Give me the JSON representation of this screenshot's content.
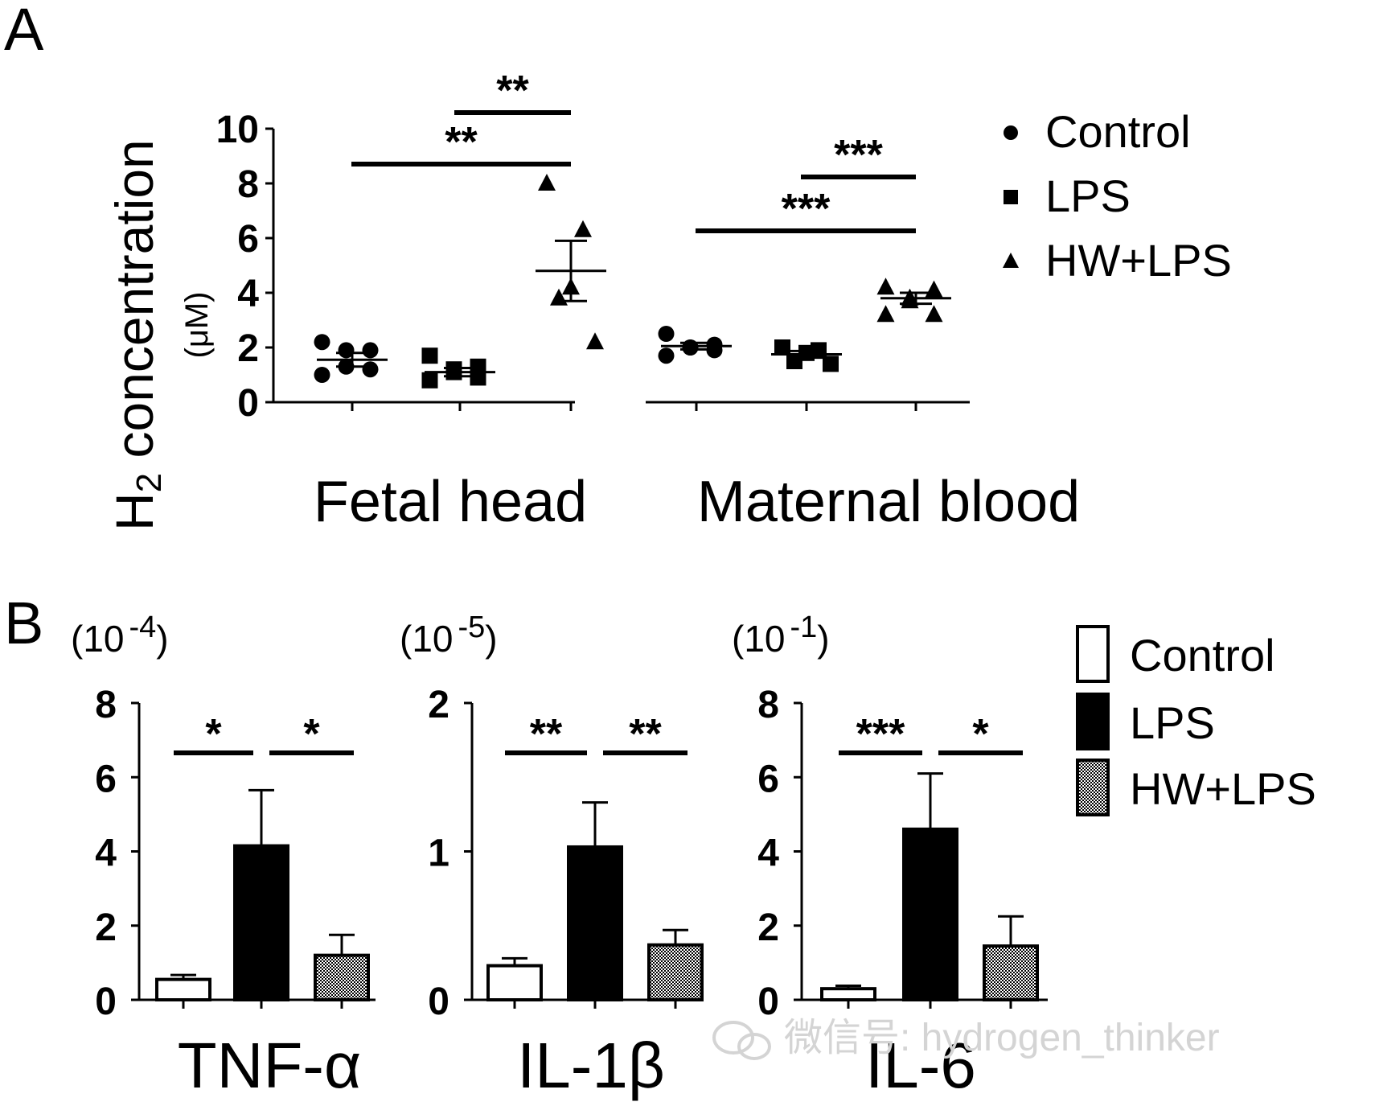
{
  "colors": {
    "control": "#ffffff",
    "lps": "#000000",
    "hwlps": "#9a9a9a",
    "watermark": "#d4d4d4"
  },
  "panel_a_label": "A",
  "panel_b_label": "B",
  "watermark": "微信号: hydrogen_thinker",
  "chart_data": [
    {
      "type": "scatter",
      "panel": "A",
      "ylabel": "H2 concentration",
      "ylabel_main": "H",
      "ylabel_sub": "2",
      "ylabel_rest": " concentration",
      "ylabel_unit": "(μM)",
      "ylim": [
        0,
        10
      ],
      "yticks": [
        0,
        2,
        4,
        6,
        8,
        10
      ],
      "groups": [
        "Fetal head",
        "Maternal blood"
      ],
      "legend": [
        {
          "name": "Control",
          "marker": "circle"
        },
        {
          "name": "LPS",
          "marker": "square"
        },
        {
          "name": "HW+LPS",
          "marker": "triangle"
        }
      ],
      "series": [
        {
          "group": "Fetal head",
          "name": "Control",
          "marker": "circle",
          "points": [
            2.2,
            1.9,
            1.9,
            1.3,
            1.2,
            1.0
          ],
          "mean": 1.55,
          "sem": 0.25
        },
        {
          "group": "Fetal head",
          "name": "LPS",
          "marker": "square",
          "points": [
            1.7,
            1.3,
            1.2,
            1.1,
            0.9,
            0.8
          ],
          "mean": 1.1,
          "sem": 0.15
        },
        {
          "group": "Fetal head",
          "name": "HW+LPS",
          "marker": "triangle",
          "points": [
            8.0,
            6.3,
            4.2,
            3.8,
            2.2
          ],
          "mean": 4.8,
          "sem": 1.1
        },
        {
          "group": "Maternal blood",
          "name": "Control",
          "marker": "circle",
          "points": [
            2.5,
            2.1,
            2.0,
            2.0,
            1.9,
            1.7
          ],
          "mean": 2.05,
          "sem": 0.12
        },
        {
          "group": "Maternal blood",
          "name": "LPS",
          "marker": "square",
          "points": [
            2.0,
            1.9,
            1.8,
            1.5,
            1.4
          ],
          "mean": 1.75,
          "sem": 0.12
        },
        {
          "group": "Maternal blood",
          "name": "HW+LPS",
          "marker": "triangle",
          "points": [
            4.2,
            4.1,
            3.8,
            3.7,
            3.2,
            3.2
          ],
          "mean": 3.8,
          "sem": 0.2
        }
      ],
      "significance": [
        {
          "group": "Fetal head",
          "from": "Control",
          "to": "HW+LPS",
          "label": "**"
        },
        {
          "group": "Fetal head",
          "from": "LPS",
          "to": "HW+LPS",
          "label": "**"
        },
        {
          "group": "Maternal blood",
          "from": "Control",
          "to": "HW+LPS",
          "label": "***"
        },
        {
          "group": "Maternal blood",
          "from": "LPS",
          "to": "HW+LPS",
          "label": "***"
        }
      ]
    },
    {
      "type": "bar",
      "panel": "B",
      "title": "TNF-α",
      "scale_base": "(10",
      "scale_exp": "-4",
      "scale_close": ")",
      "ylim": [
        0,
        8
      ],
      "yticks": [
        0,
        2,
        4,
        6,
        8
      ],
      "categories": [
        "Control",
        "LPS",
        "HW+LPS"
      ],
      "values": [
        0.55,
        4.15,
        1.2
      ],
      "errors": [
        0.12,
        1.5,
        0.55
      ],
      "significance": [
        {
          "from": "Control",
          "to": "LPS",
          "label": "*"
        },
        {
          "from": "LPS",
          "to": "HW+LPS",
          "label": "*"
        }
      ]
    },
    {
      "type": "bar",
      "panel": "B",
      "title": "IL-1β",
      "scale_base": "(10",
      "scale_exp": "-5",
      "scale_close": ")",
      "ylim": [
        0,
        2
      ],
      "yticks": [
        0,
        1,
        2
      ],
      "categories": [
        "Control",
        "LPS",
        "HW+LPS"
      ],
      "values": [
        0.23,
        1.03,
        0.37
      ],
      "errors": [
        0.05,
        0.3,
        0.1
      ],
      "significance": [
        {
          "from": "Control",
          "to": "LPS",
          "label": "**"
        },
        {
          "from": "LPS",
          "to": "HW+LPS",
          "label": "**"
        }
      ]
    },
    {
      "type": "bar",
      "panel": "B",
      "title": "IL-6",
      "scale_base": "(10",
      "scale_exp": "-1",
      "scale_close": ")",
      "ylim": [
        0,
        8
      ],
      "yticks": [
        0,
        2,
        4,
        6,
        8
      ],
      "categories": [
        "Control",
        "LPS",
        "HW+LPS"
      ],
      "values": [
        0.3,
        4.6,
        1.45
      ],
      "errors": [
        0.08,
        1.5,
        0.8
      ],
      "significance": [
        {
          "from": "Control",
          "to": "LPS",
          "label": "***"
        },
        {
          "from": "LPS",
          "to": "HW+LPS",
          "label": "*"
        }
      ],
      "legend": [
        {
          "name": "Control",
          "fill": "white"
        },
        {
          "name": "LPS",
          "fill": "black"
        },
        {
          "name": "HW+LPS",
          "fill": "checker"
        }
      ]
    }
  ]
}
